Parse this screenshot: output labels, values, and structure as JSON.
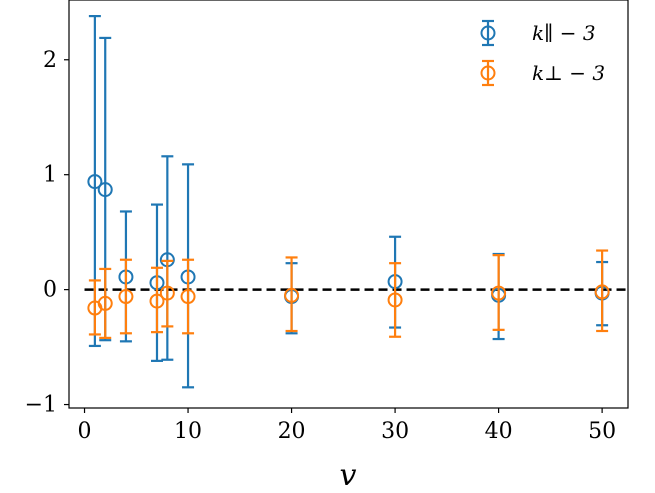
{
  "chart_data": {
    "type": "scatter",
    "xlabel": "v",
    "ylabel": "",
    "xlim": [
      -1.5,
      52.5
    ],
    "ylim": [
      -1.03,
      2.52
    ],
    "xticks": [
      0,
      10,
      20,
      30,
      40,
      50
    ],
    "yticks": [
      -1,
      0,
      1,
      2
    ],
    "xtick_labels": [
      "0",
      "10",
      "20",
      "30",
      "40",
      "50"
    ],
    "ytick_labels": [
      "−1",
      "0",
      "1",
      "2"
    ],
    "grid": false,
    "legend_position": "top-right",
    "reference_line": {
      "y": 0,
      "style": "dashed",
      "color": "#000000"
    },
    "series": [
      {
        "name": "k∥ − 3",
        "color": "#1f77b4",
        "x": [
          1,
          2,
          4,
          7,
          8,
          10,
          20,
          30,
          40,
          50
        ],
        "y": [
          0.94,
          0.87,
          0.11,
          0.06,
          0.26,
          0.11,
          -0.06,
          0.07,
          -0.05,
          -0.03
        ],
        "err_low": [
          -0.49,
          -0.44,
          -0.45,
          -0.62,
          -0.61,
          -0.85,
          -0.38,
          -0.33,
          -0.43,
          -0.31
        ],
        "err_high": [
          2.38,
          2.19,
          0.68,
          0.74,
          1.16,
          1.09,
          0.23,
          0.46,
          0.31,
          0.24
        ]
      },
      {
        "name": "k⊥ − 3",
        "color": "#ff7f0e",
        "x": [
          1,
          2,
          4,
          7,
          8,
          10,
          20,
          30,
          40,
          50
        ],
        "y": [
          -0.16,
          -0.12,
          -0.06,
          -0.1,
          -0.03,
          -0.06,
          -0.05,
          -0.09,
          -0.03,
          -0.02
        ],
        "err_low": [
          -0.39,
          -0.42,
          -0.38,
          -0.37,
          -0.32,
          -0.38,
          -0.36,
          -0.41,
          -0.35,
          -0.36
        ],
        "err_high": [
          0.08,
          0.18,
          0.26,
          0.19,
          0.25,
          0.26,
          0.28,
          0.23,
          0.3,
          0.34
        ]
      }
    ]
  }
}
